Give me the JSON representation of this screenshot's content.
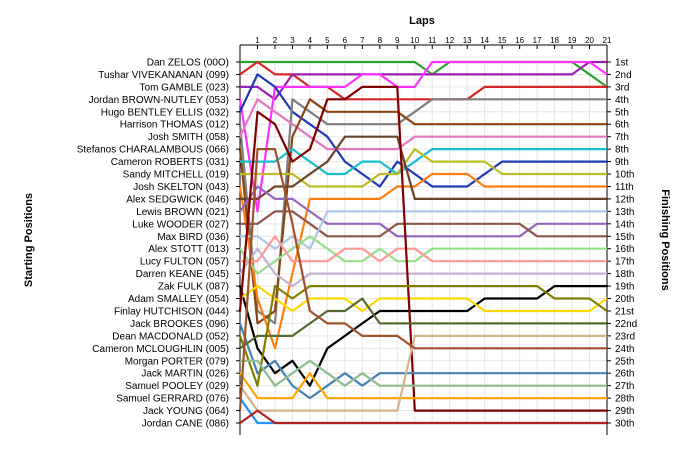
{
  "chart_data": {
    "type": "line",
    "title": "Laps",
    "ylabel_left": "Starting Positions",
    "ylabel_right": "Finishing Positions",
    "x": [
      1,
      2,
      3,
      4,
      5,
      6,
      7,
      8,
      9,
      10,
      11,
      12,
      13,
      14,
      15,
      16,
      17,
      18,
      19,
      20,
      21
    ],
    "xlim": [
      0,
      21
    ],
    "ylim": [
      1,
      30
    ],
    "drivers": [
      "Dan ZELOS (00O)",
      "Tushar VIVEKANANAN (099)",
      "Tom GAMBLE (023)",
      "Jordan BROWN-NUTLEY (053)",
      "Hugo BENTLEY ELLIS (032)",
      "Harrison THOMAS (012)",
      "Josh SMITH (058)",
      "Stefanos CHARALAMBOUS (066)",
      "Cameron ROBERTS (031)",
      "Sandy MITCHELL (019)",
      "Josh SKELTON (043)",
      "Alex SEDGWICK (046)",
      "Lewis BROWN (021)",
      "Luke WOODER (027)",
      "Max BIRD (036)",
      "Alex STOTT (013)",
      "Lucy FULTON (057)",
      "Darren KEANE (045)",
      "Zak FULK (087)",
      "Adam SMALLEY (054)",
      "Finlay HUTCHISON (044)",
      "Jack BROOKES (096)",
      "Dean MACDONALD (052)",
      "Cameron MCLOUGHLIN (005)",
      "Morgan PORTER (079)",
      "Jack MARTIN (026)",
      "Samuel POOLEY (029)",
      "Samuel GERRARD (076)",
      "Jack YOUNG (064)",
      "Jordan CANE (086)"
    ],
    "finishing_labels": [
      "1st",
      "2nd",
      "3rd",
      "4th",
      "5th",
      "6th",
      "7th",
      "8th",
      "9th",
      "10th",
      "11th",
      "12th",
      "13th",
      "14th",
      "15th",
      "16th",
      "17th",
      "18th",
      "19th",
      "20th",
      "21st",
      "22nd",
      "23rd",
      "24th",
      "25th",
      "26th",
      "27th",
      "28th",
      "29th",
      "30th"
    ],
    "series": [
      {
        "color": "#2ca02c",
        "values": [
          1,
          1,
          1,
          1,
          1,
          1,
          1,
          1,
          1,
          1,
          2,
          1,
          1,
          1,
          1,
          1,
          1,
          1,
          1,
          2,
          3
        ]
      },
      {
        "color": "#d62728",
        "values": [
          1,
          2,
          2,
          3,
          3,
          4,
          4,
          4,
          4,
          4,
          4,
          4,
          4,
          3,
          3,
          3,
          3,
          3,
          3,
          3,
          3
        ]
      },
      {
        "color": "#9b1fb0",
        "values": [
          3,
          4,
          2,
          2,
          2,
          2,
          2,
          2,
          2,
          2,
          2,
          2,
          2,
          2,
          2,
          2,
          2,
          2,
          2,
          1,
          1
        ]
      },
      {
        "color": "#ff33ff",
        "values": [
          13,
          3,
          3,
          3,
          3,
          3,
          2,
          2,
          3,
          3,
          1,
          1,
          1,
          1,
          1,
          1,
          1,
          1,
          1,
          1,
          2
        ]
      },
      {
        "color": "#1f3ab4",
        "values": [
          2,
          3,
          5,
          6,
          7,
          9,
          10,
          11,
          9,
          10,
          11,
          11,
          11,
          10,
          9,
          9,
          9,
          9,
          9,
          9,
          9
        ]
      },
      {
        "color": "#7f7f7f",
        "values": [
          21,
          22,
          4,
          5,
          6,
          6,
          6,
          6,
          6,
          5,
          4,
          4,
          4,
          4,
          4,
          4,
          4,
          4,
          4,
          4,
          4
        ]
      },
      {
        "color": "#e377c2",
        "values": [
          4,
          5,
          6,
          7,
          8,
          8,
          8,
          8,
          8,
          7,
          7,
          7,
          7,
          7,
          7,
          7,
          7,
          7,
          7,
          7,
          7
        ]
      },
      {
        "color": "#8b4513",
        "values": [
          22,
          21,
          7,
          4,
          5,
          5,
          5,
          5,
          5,
          6,
          6,
          6,
          6,
          6,
          6,
          6,
          6,
          6,
          6,
          6,
          6
        ]
      },
      {
        "color": "#17becf",
        "values": [
          9,
          9,
          8,
          9,
          10,
          10,
          9,
          9,
          10,
          9,
          8,
          8,
          8,
          8,
          8,
          8,
          8,
          8,
          8,
          8,
          8
        ]
      },
      {
        "color": "#bcbd22",
        "values": [
          10,
          10,
          10,
          11,
          11,
          11,
          11,
          10,
          10,
          8,
          9,
          9,
          9,
          9,
          10,
          10,
          10,
          10,
          10,
          10,
          10
        ]
      },
      {
        "color": "#ff7f0e",
        "values": [
          20,
          24,
          18,
          12,
          12,
          12,
          12,
          12,
          11,
          11,
          10,
          10,
          10,
          11,
          11,
          11,
          11,
          11,
          11,
          11,
          11
        ]
      },
      {
        "color": "#6b4226",
        "values": [
          12,
          11,
          11,
          10,
          9,
          7,
          7,
          7,
          7,
          12,
          12,
          12,
          12,
          12,
          12,
          12,
          12,
          12,
          12,
          12,
          12
        ]
      },
      {
        "color": "#9467bd",
        "values": [
          11,
          12,
          12,
          13,
          14,
          14,
          14,
          14,
          15,
          15,
          15,
          15,
          15,
          15,
          15,
          15,
          14,
          14,
          14,
          14,
          14
        ]
      },
      {
        "color": "#8c564b",
        "values": [
          14,
          13,
          13,
          14,
          15,
          15,
          15,
          15,
          14,
          14,
          14,
          14,
          14,
          14,
          14,
          14,
          15,
          15,
          15,
          15,
          15
        ]
      },
      {
        "color": "#aec7e8",
        "values": [
          15,
          16,
          15,
          16,
          13,
          13,
          13,
          13,
          13,
          13,
          13,
          13,
          13,
          13,
          13,
          13,
          13,
          13,
          13,
          13,
          13
        ]
      },
      {
        "color": "#98df8a",
        "values": [
          18,
          17,
          16,
          15,
          16,
          17,
          17,
          16,
          17,
          17,
          16,
          16,
          16,
          16,
          16,
          16,
          16,
          16,
          16,
          16,
          16
        ]
      },
      {
        "color": "#ff9896",
        "values": [
          17,
          15,
          17,
          17,
          17,
          16,
          16,
          17,
          16,
          16,
          17,
          17,
          17,
          17,
          17,
          17,
          17,
          17,
          17,
          17,
          17
        ]
      },
      {
        "color": "#c5b0d5",
        "values": [
          16,
          18,
          19,
          18,
          18,
          18,
          18,
          18,
          18,
          18,
          18,
          18,
          18,
          18,
          18,
          18,
          18,
          18,
          18,
          18,
          18
        ]
      },
      {
        "color": "#000000",
        "values": [
          24,
          26,
          25,
          27,
          24,
          23,
          22,
          21,
          21,
          21,
          21,
          21,
          21,
          20,
          20,
          20,
          20,
          19,
          19,
          19,
          19
        ]
      },
      {
        "color": "#ffd700",
        "values": [
          19,
          20,
          21,
          20,
          20,
          20,
          21,
          20,
          20,
          20,
          20,
          20,
          20,
          21,
          21,
          21,
          21,
          21,
          21,
          21,
          20
        ]
      },
      {
        "color": "#800000",
        "values": [
          5,
          6,
          9,
          8,
          4,
          4,
          3,
          3,
          3,
          29,
          29,
          29,
          29,
          29,
          29,
          29,
          29,
          29,
          29,
          29,
          29
        ]
      },
      {
        "color": "#4682b4",
        "values": [
          26,
          25,
          27,
          28,
          27,
          26,
          27,
          26,
          26,
          26,
          26,
          26,
          26,
          26,
          26,
          26,
          26,
          26,
          26,
          26,
          26
        ]
      },
      {
        "color": "#808000",
        "values": [
          27,
          19,
          20,
          19,
          19,
          19,
          19,
          19,
          19,
          19,
          19,
          19,
          19,
          19,
          19,
          19,
          19,
          20,
          20,
          20,
          21
        ]
      },
      {
        "color": "#556b2f",
        "values": [
          23,
          23,
          23,
          22,
          21,
          21,
          20,
          22,
          22,
          22,
          22,
          22,
          22,
          22,
          22,
          22,
          22,
          22,
          22,
          22,
          22
        ]
      },
      {
        "color": "#8fbc8f",
        "values": [
          25,
          27,
          26,
          25,
          26,
          27,
          26,
          27,
          27,
          27,
          27,
          27,
          27,
          27,
          27,
          27,
          27,
          27,
          27,
          27,
          27
        ]
      },
      {
        "color": "#ffa500",
        "values": [
          28,
          28,
          28,
          26,
          28,
          28,
          28,
          28,
          28,
          28,
          28,
          28,
          28,
          28,
          28,
          28,
          28,
          28,
          28,
          28,
          28
        ]
      },
      {
        "color": "#d2b48c",
        "values": [
          29,
          29,
          29,
          29,
          29,
          29,
          29,
          29,
          29,
          23,
          23,
          23,
          23,
          23,
          23,
          23,
          23,
          23,
          23,
          23,
          23
        ]
      },
      {
        "color": "#1e90ff",
        "values": [
          30,
          30,
          30,
          30,
          30,
          30,
          30,
          30,
          30,
          30,
          30,
          30,
          30,
          30,
          30,
          30,
          30,
          30,
          30,
          30,
          30
        ]
      },
      {
        "color": "#a0522d",
        "values": [
          8,
          8,
          14,
          21,
          22,
          22,
          23,
          23,
          23,
          24,
          24,
          24,
          24,
          24,
          24,
          24,
          24,
          24,
          24,
          24,
          24
        ]
      },
      {
        "color": "#b22222",
        "values": [
          29,
          30,
          30,
          30,
          30,
          30,
          30,
          30,
          30,
          30,
          30,
          30,
          30,
          30,
          30,
          30,
          30,
          30,
          30,
          30,
          30
        ]
      }
    ]
  }
}
